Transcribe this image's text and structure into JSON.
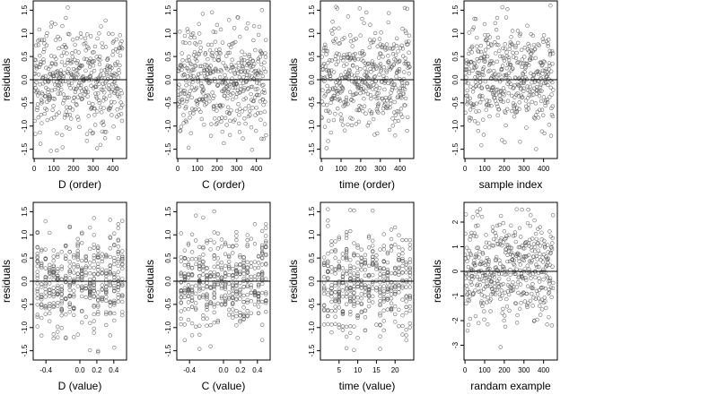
{
  "chart_data": [
    {
      "type": "scatter",
      "xlabel": "D (order)",
      "ylabel": "residuals",
      "xlim": [
        -5,
        470
      ],
      "ylim": [
        -1.7,
        1.7
      ],
      "xticks": [
        0,
        100,
        200,
        300,
        400
      ],
      "yticks": [
        -1.5,
        -1.0,
        -0.5,
        0.0,
        0.5,
        1.0,
        1.5
      ],
      "hline": 0,
      "marker": "open-circle",
      "points": {
        "n": 450,
        "x_range": [
          0,
          449
        ],
        "y_center": 0.0,
        "y_spread": 0.55,
        "y_min": -1.55,
        "y_max": 1.6,
        "pattern": "order"
      }
    },
    {
      "type": "scatter",
      "xlabel": "C (order)",
      "ylabel": "residuals",
      "xlim": [
        -5,
        470
      ],
      "ylim": [
        -1.7,
        1.7
      ],
      "xticks": [
        0,
        100,
        200,
        300,
        400
      ],
      "yticks": [
        -1.5,
        -1.0,
        -0.5,
        0.0,
        0.5,
        1.0,
        1.5
      ],
      "hline": 0,
      "marker": "open-circle",
      "points": {
        "n": 450,
        "x_range": [
          0,
          449
        ],
        "y_center": 0.0,
        "y_spread": 0.55,
        "y_min": -1.55,
        "y_max": 1.6,
        "pattern": "order"
      }
    },
    {
      "type": "scatter",
      "xlabel": "time (order)",
      "ylabel": "residuals",
      "xlim": [
        -5,
        470
      ],
      "ylim": [
        -1.7,
        1.7
      ],
      "xticks": [
        0,
        100,
        200,
        300,
        400
      ],
      "yticks": [
        -1.5,
        -1.0,
        -0.5,
        0.0,
        0.5,
        1.0,
        1.5
      ],
      "hline": 0,
      "marker": "open-circle",
      "points": {
        "n": 450,
        "x_range": [
          0,
          449
        ],
        "y_center": 0.0,
        "y_spread": 0.55,
        "y_min": -1.55,
        "y_max": 1.6,
        "pattern": "order"
      }
    },
    {
      "type": "scatter",
      "xlabel": "sample index",
      "ylabel": "residuals",
      "xlim": [
        -5,
        470
      ],
      "ylim": [
        -1.7,
        1.7
      ],
      "xticks": [
        0,
        100,
        200,
        300,
        400
      ],
      "yticks": [
        -1.5,
        -1.0,
        -0.5,
        0.0,
        0.5,
        1.0,
        1.5
      ],
      "hline": 0,
      "marker": "open-circle",
      "points": {
        "n": 450,
        "x_range": [
          0,
          449
        ],
        "y_center": 0.0,
        "y_spread": 0.55,
        "y_min": -1.55,
        "y_max": 1.6,
        "pattern": "order"
      }
    },
    {
      "type": "scatter",
      "xlabel": "D (value)",
      "ylabel": "residuals",
      "xlim": [
        -0.55,
        0.55
      ],
      "ylim": [
        -1.7,
        1.7
      ],
      "xticks": [
        -0.4,
        0.0,
        0.2,
        0.4
      ],
      "xtick_labels": [
        "-0.4",
        "0.0",
        "0.2",
        "0.4"
      ],
      "yticks": [
        -1.5,
        -1.0,
        -0.5,
        0.0,
        0.5,
        1.0,
        1.5
      ],
      "hline": 0,
      "marker": "open-circle",
      "points": {
        "n": 450,
        "x_range": [
          -0.5,
          0.5
        ],
        "y_center": 0.0,
        "y_spread": 0.55,
        "y_min": -1.55,
        "y_max": 1.6,
        "pattern": "discrete",
        "levels": 22
      }
    },
    {
      "type": "scatter",
      "xlabel": "C (value)",
      "ylabel": "residuals",
      "xlim": [
        -0.55,
        0.55
      ],
      "ylim": [
        -1.7,
        1.7
      ],
      "xticks": [
        -0.4,
        0.0,
        0.2,
        0.4
      ],
      "xtick_labels": [
        "-0.4",
        "0.0",
        "0.2",
        "0.4"
      ],
      "yticks": [
        -1.5,
        -1.0,
        -0.5,
        0.0,
        0.5,
        1.0,
        1.5
      ],
      "hline": 0,
      "marker": "open-circle",
      "points": {
        "n": 450,
        "x_range": [
          -0.5,
          0.5
        ],
        "y_center": 0.0,
        "y_spread": 0.55,
        "y_min": -1.55,
        "y_max": 1.6,
        "pattern": "discrete",
        "levels": 24
      }
    },
    {
      "type": "scatter",
      "xlabel": "time (value)",
      "ylabel": "residuals",
      "xlim": [
        0,
        25
      ],
      "ylim": [
        -1.7,
        1.7
      ],
      "xticks": [
        5,
        10,
        15,
        20
      ],
      "yticks": [
        -1.5,
        -1.0,
        -0.5,
        0.0,
        0.5,
        1.0,
        1.5
      ],
      "hline": 0,
      "marker": "open-circle",
      "points": {
        "n": 450,
        "x_range": [
          1,
          24
        ],
        "y_center": 0.0,
        "y_spread": 0.55,
        "y_min": -1.55,
        "y_max": 1.6,
        "pattern": "discrete",
        "levels": 24
      }
    },
    {
      "type": "scatter",
      "xlabel": "randam example",
      "ylabel": "residuals",
      "xlim": [
        -5,
        470
      ],
      "ylim": [
        -3.6,
        2.8
      ],
      "xticks": [
        0,
        100,
        200,
        300,
        400
      ],
      "yticks": [
        -3,
        -2,
        -1,
        0,
        1,
        2
      ],
      "hline": 0,
      "marker": "open-circle",
      "points": {
        "n": 450,
        "x_range": [
          0,
          449
        ],
        "y_center": 0.0,
        "y_spread": 1.0,
        "y_min": -3.3,
        "y_max": 2.6,
        "pattern": "order"
      }
    }
  ]
}
